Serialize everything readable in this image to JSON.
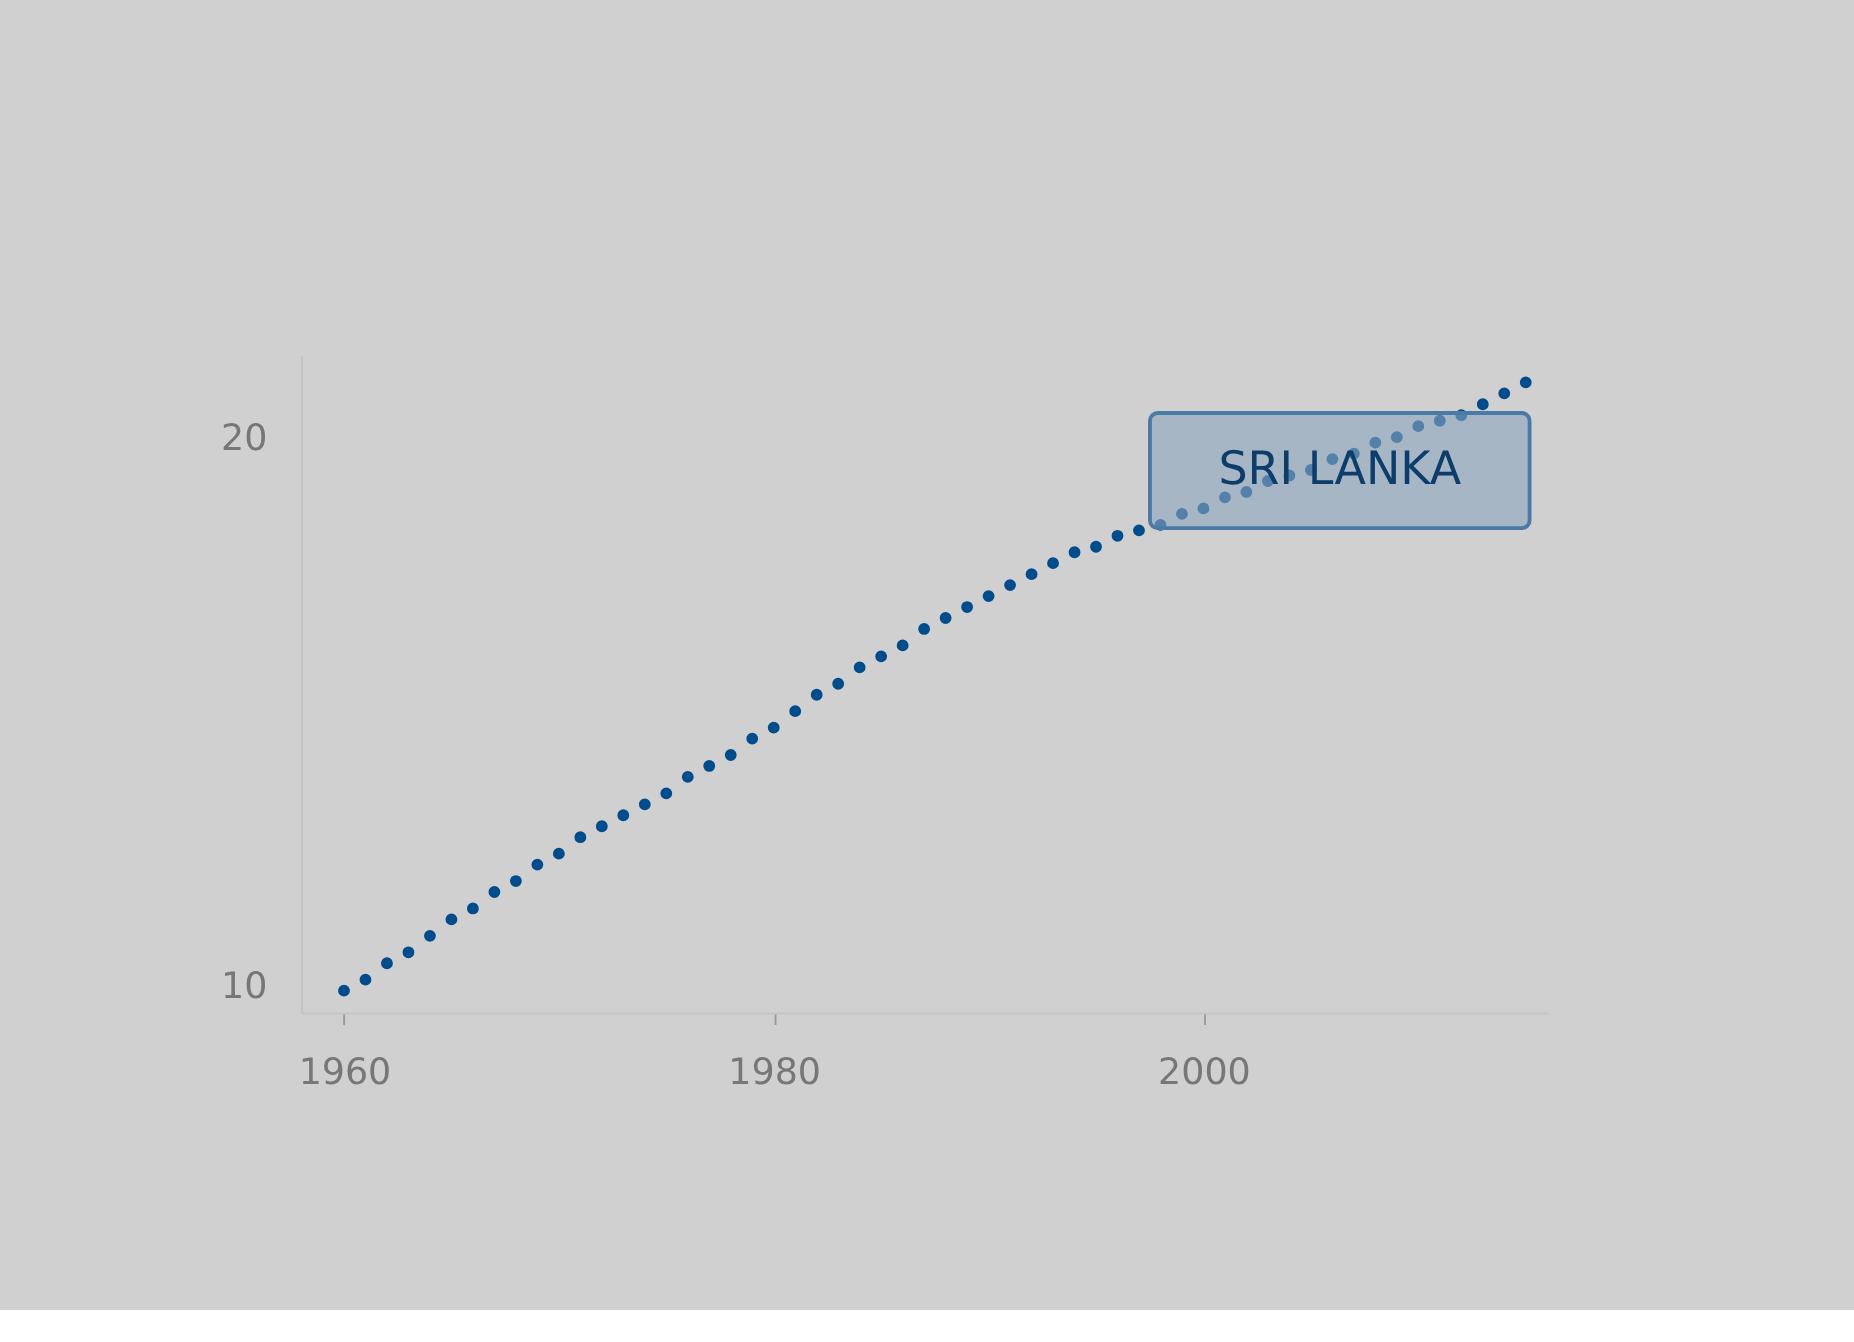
{
  "chart_data": {
    "type": "scatter",
    "marker": "circle",
    "x": [
      1960,
      1961,
      1962,
      1963,
      1964,
      1965,
      1966,
      1967,
      1968,
      1969,
      1970,
      1971,
      1972,
      1973,
      1974,
      1975,
      1976,
      1977,
      1978,
      1979,
      1980,
      1981,
      1982,
      1983,
      1984,
      1985,
      1986,
      1987,
      1988,
      1989,
      1990,
      1991,
      1992,
      1993,
      1994,
      1995,
      1996,
      1997,
      1998,
      1999,
      2000,
      2001,
      2002,
      2003,
      2004,
      2005,
      2006,
      2007,
      2008,
      2009,
      2010,
      2011,
      2012,
      2013,
      2014,
      2015
    ],
    "series": [
      {
        "name": "SRI LANKA",
        "color": "#004c8c",
        "values": [
          9.9,
          10.1,
          10.4,
          10.6,
          10.9,
          11.2,
          11.4,
          11.7,
          11.9,
          12.2,
          12.4,
          12.7,
          12.9,
          13.1,
          13.3,
          13.5,
          13.8,
          14.0,
          14.2,
          14.5,
          14.7,
          15.0,
          15.3,
          15.5,
          15.8,
          16.0,
          16.2,
          16.5,
          16.7,
          16.9,
          17.1,
          17.3,
          17.5,
          17.7,
          17.9,
          18.0,
          18.2,
          18.3,
          18.4,
          18.6,
          18.7,
          18.9,
          19.0,
          19.2,
          19.3,
          19.4,
          19.6,
          19.7,
          19.9,
          20.0,
          20.2,
          20.3,
          20.4,
          20.6,
          20.8,
          21.0
        ]
      }
    ],
    "xlim": [
      1958,
      2016
    ],
    "ylim": [
      9.5,
      21.5
    ],
    "xticks": [
      1960,
      1980,
      2000
    ],
    "yticks": [
      10,
      20
    ],
    "grid": false,
    "legend": false
  }
}
